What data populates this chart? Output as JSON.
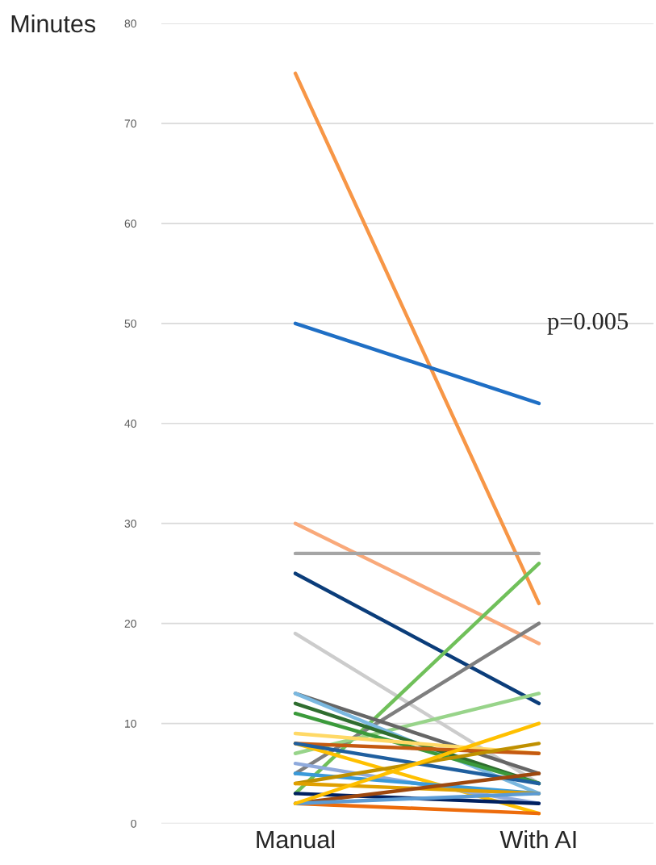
{
  "chart_data": {
    "type": "line",
    "ylabel": "Minutes",
    "categories": [
      "Manual",
      "With AI"
    ],
    "ylim": [
      0,
      80
    ],
    "yticks": [
      0,
      10,
      20,
      30,
      40,
      50,
      60,
      70,
      80
    ],
    "grid": "y",
    "marker": "none",
    "line_style": "solid",
    "legend": false,
    "annotations": [
      "p=0.005"
    ],
    "series": [
      {
        "color": "#f79646",
        "values": [
          75,
          22
        ]
      },
      {
        "color": "#1f6fc5",
        "values": [
          50,
          42
        ]
      },
      {
        "color": "#f9a97a",
        "values": [
          30,
          18
        ]
      },
      {
        "color": "#a5a5a5",
        "values": [
          27,
          27
        ]
      },
      {
        "color": "#0b3d7a",
        "values": [
          25,
          12
        ]
      },
      {
        "color": "#cccccc",
        "values": [
          19,
          4
        ]
      },
      {
        "color": "#70c05a",
        "values": [
          3,
          26
        ]
      },
      {
        "color": "#7f7f7f",
        "values": [
          5,
          20
        ]
      },
      {
        "color": "#98d48a",
        "values": [
          7,
          13
        ]
      },
      {
        "color": "#666666",
        "values": [
          13,
          5
        ]
      },
      {
        "color": "#7ab8e0",
        "values": [
          13,
          3
        ]
      },
      {
        "color": "#2f6d2f",
        "values": [
          12,
          4
        ]
      },
      {
        "color": "#3b9a3b",
        "values": [
          11,
          4
        ]
      },
      {
        "color": "#ffd966",
        "values": [
          9,
          7
        ]
      },
      {
        "color": "#ffc000",
        "values": [
          8,
          1
        ]
      },
      {
        "color": "#c55a11",
        "values": [
          8,
          7
        ]
      },
      {
        "color": "#1f5f9f",
        "values": [
          8,
          4
        ]
      },
      {
        "color": "#8faadc",
        "values": [
          6,
          2
        ]
      },
      {
        "color": "#3a9ad9",
        "values": [
          5,
          3
        ]
      },
      {
        "color": "#bf9000",
        "values": [
          4,
          8
        ]
      },
      {
        "color": "#e0a000",
        "values": [
          4,
          3
        ]
      },
      {
        "color": "#002060",
        "values": [
          3,
          2
        ]
      },
      {
        "color": "#9e480e",
        "values": [
          2,
          5
        ]
      },
      {
        "color": "#ed6c0c",
        "values": [
          2,
          1
        ]
      },
      {
        "color": "#5b9bd5",
        "values": [
          2,
          3
        ]
      },
      {
        "color": "#ffc000",
        "values": [
          2,
          10
        ]
      }
    ]
  }
}
